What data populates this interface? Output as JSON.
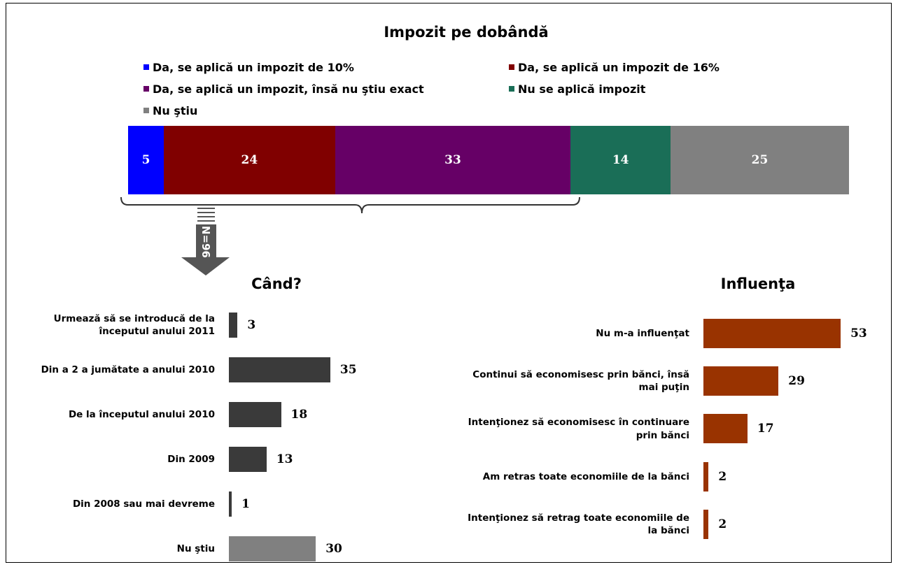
{
  "chart_data": [
    {
      "type": "stacked-bar",
      "title": "Impozit pe dobândă",
      "orientation": "horizontal",
      "xlim": [
        0,
        101
      ],
      "series": [
        {
          "name": "Da, se aplică un impozit de 10%",
          "color": "#0000ff",
          "values": [
            5
          ]
        },
        {
          "name": "Da, se aplică un impozit de 16%",
          "color": "#800000",
          "values": [
            24
          ]
        },
        {
          "name": "Da, se aplică un impozit, însă nu ştiu exact",
          "color": "#660066",
          "values": [
            33
          ]
        },
        {
          "name": "Nu se aplică impozit",
          "color": "#1a6e57",
          "values": [
            14
          ]
        },
        {
          "name": "Nu ştiu",
          "color": "#808080",
          "values": [
            25
          ]
        }
      ]
    },
    {
      "type": "bar",
      "title": "Când?",
      "orientation": "horizontal",
      "annotation": "N=96",
      "xlim": [
        0,
        100
      ],
      "categories": [
        "Urmează să se introducă de la începutul anului 2011",
        "Din a 2 a jumătate a anului 2010",
        "De la începutul anului 2010",
        "Din 2009",
        "Din 2008 sau mai devreme",
        "Nu ştiu"
      ],
      "values": [
        3,
        35,
        18,
        13,
        1,
        30
      ],
      "colors": [
        "#3a3a3a",
        "#3a3a3a",
        "#3a3a3a",
        "#3a3a3a",
        "#3a3a3a",
        "#808080"
      ]
    },
    {
      "type": "bar",
      "title": "Influenţa",
      "orientation": "horizontal",
      "xlim": [
        0,
        100
      ],
      "categories": [
        "Nu m-a influenţat",
        "Continui să economisesc prin bănci, însă mai puţin",
        "Intenţionez să economisesc în continuare prin bănci",
        "Am retras toate economiile de la bănci",
        "Intenţionez să retrag toate economiile de la bănci"
      ],
      "values": [
        53,
        29,
        17,
        2,
        2
      ],
      "color": "#993300"
    }
  ]
}
